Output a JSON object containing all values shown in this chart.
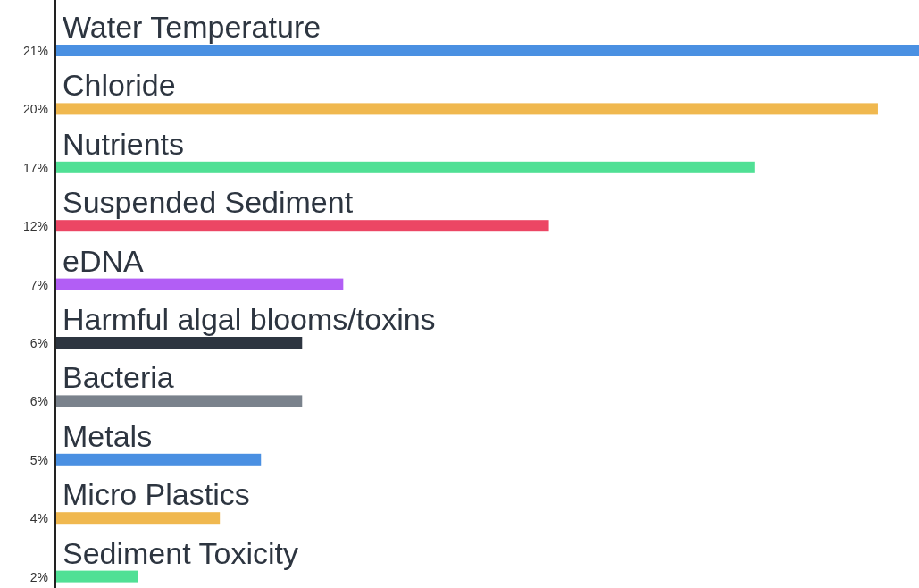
{
  "chart_data": {
    "type": "bar",
    "orientation": "horizontal",
    "categories": [
      "Water Temperature",
      "Chloride",
      "Nutrients",
      "Suspended Sediment",
      "eDNA",
      "Harmful algal blooms/toxins",
      "Bacteria",
      "Metals",
      "Micro Plastics",
      "Sediment Toxicity"
    ],
    "values": [
      21,
      20,
      17,
      12,
      7,
      6,
      6,
      5,
      4,
      2
    ],
    "value_labels": [
      "21%",
      "20%",
      "17%",
      "12%",
      "7%",
      "6%",
      "6%",
      "5%",
      "4%",
      "2%"
    ],
    "colors": [
      "#4a90e2",
      "#f0b84f",
      "#50e095",
      "#ec4664",
      "#b25ef5",
      "#2d3540",
      "#7a828c",
      "#4a90e2",
      "#f0b84f",
      "#50e095"
    ]
  }
}
